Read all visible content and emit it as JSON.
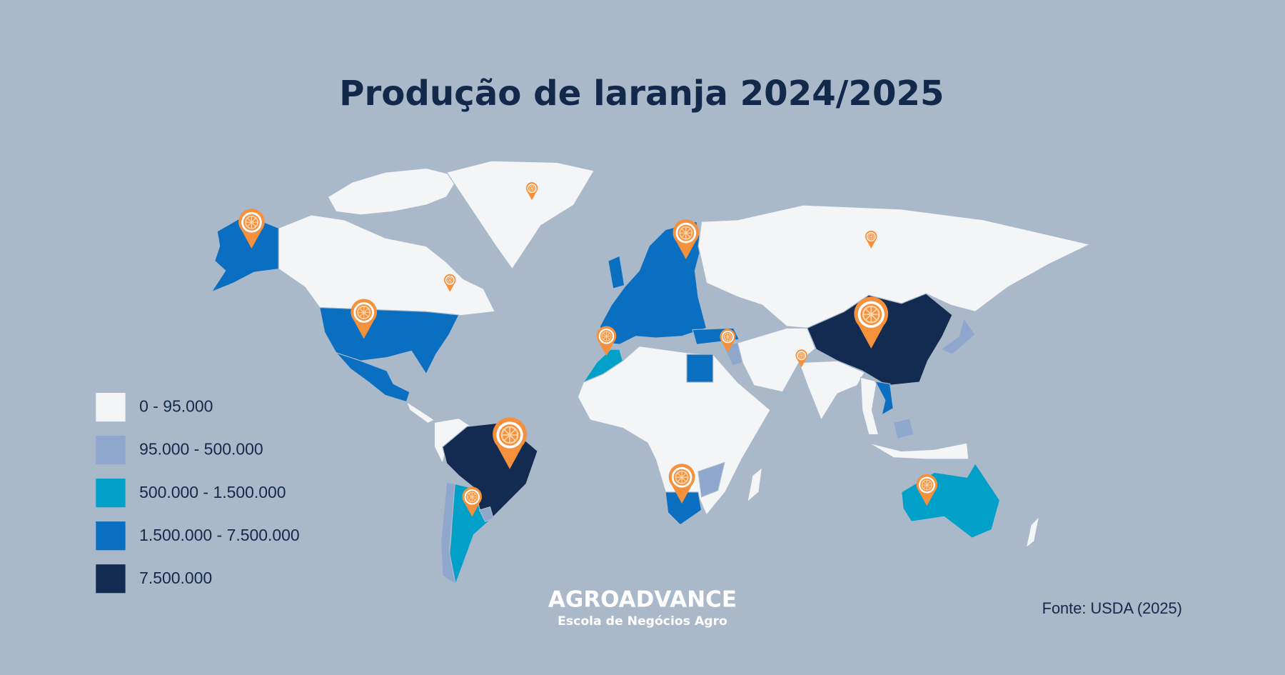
{
  "title": "Produção de laranja 2024/2025",
  "legend": [
    {
      "label": "0 - 95.000",
      "color": "#f4f5f7"
    },
    {
      "label": "95.000 - 500.000",
      "color": "#8fa7cc"
    },
    {
      "label": "500.000 - 1.500.000",
      "color": "#00a0c8"
    },
    {
      "label": "1.500.000 - 7.500.000",
      "color": "#0a6fc0"
    },
    {
      "label": "7.500.000",
      "color": "#132b50"
    }
  ],
  "source": "Fonte: USDA (2025)",
  "brand": {
    "name": "AGROADVANCE",
    "tagline": "Escola de Negócios Agro"
  }
}
